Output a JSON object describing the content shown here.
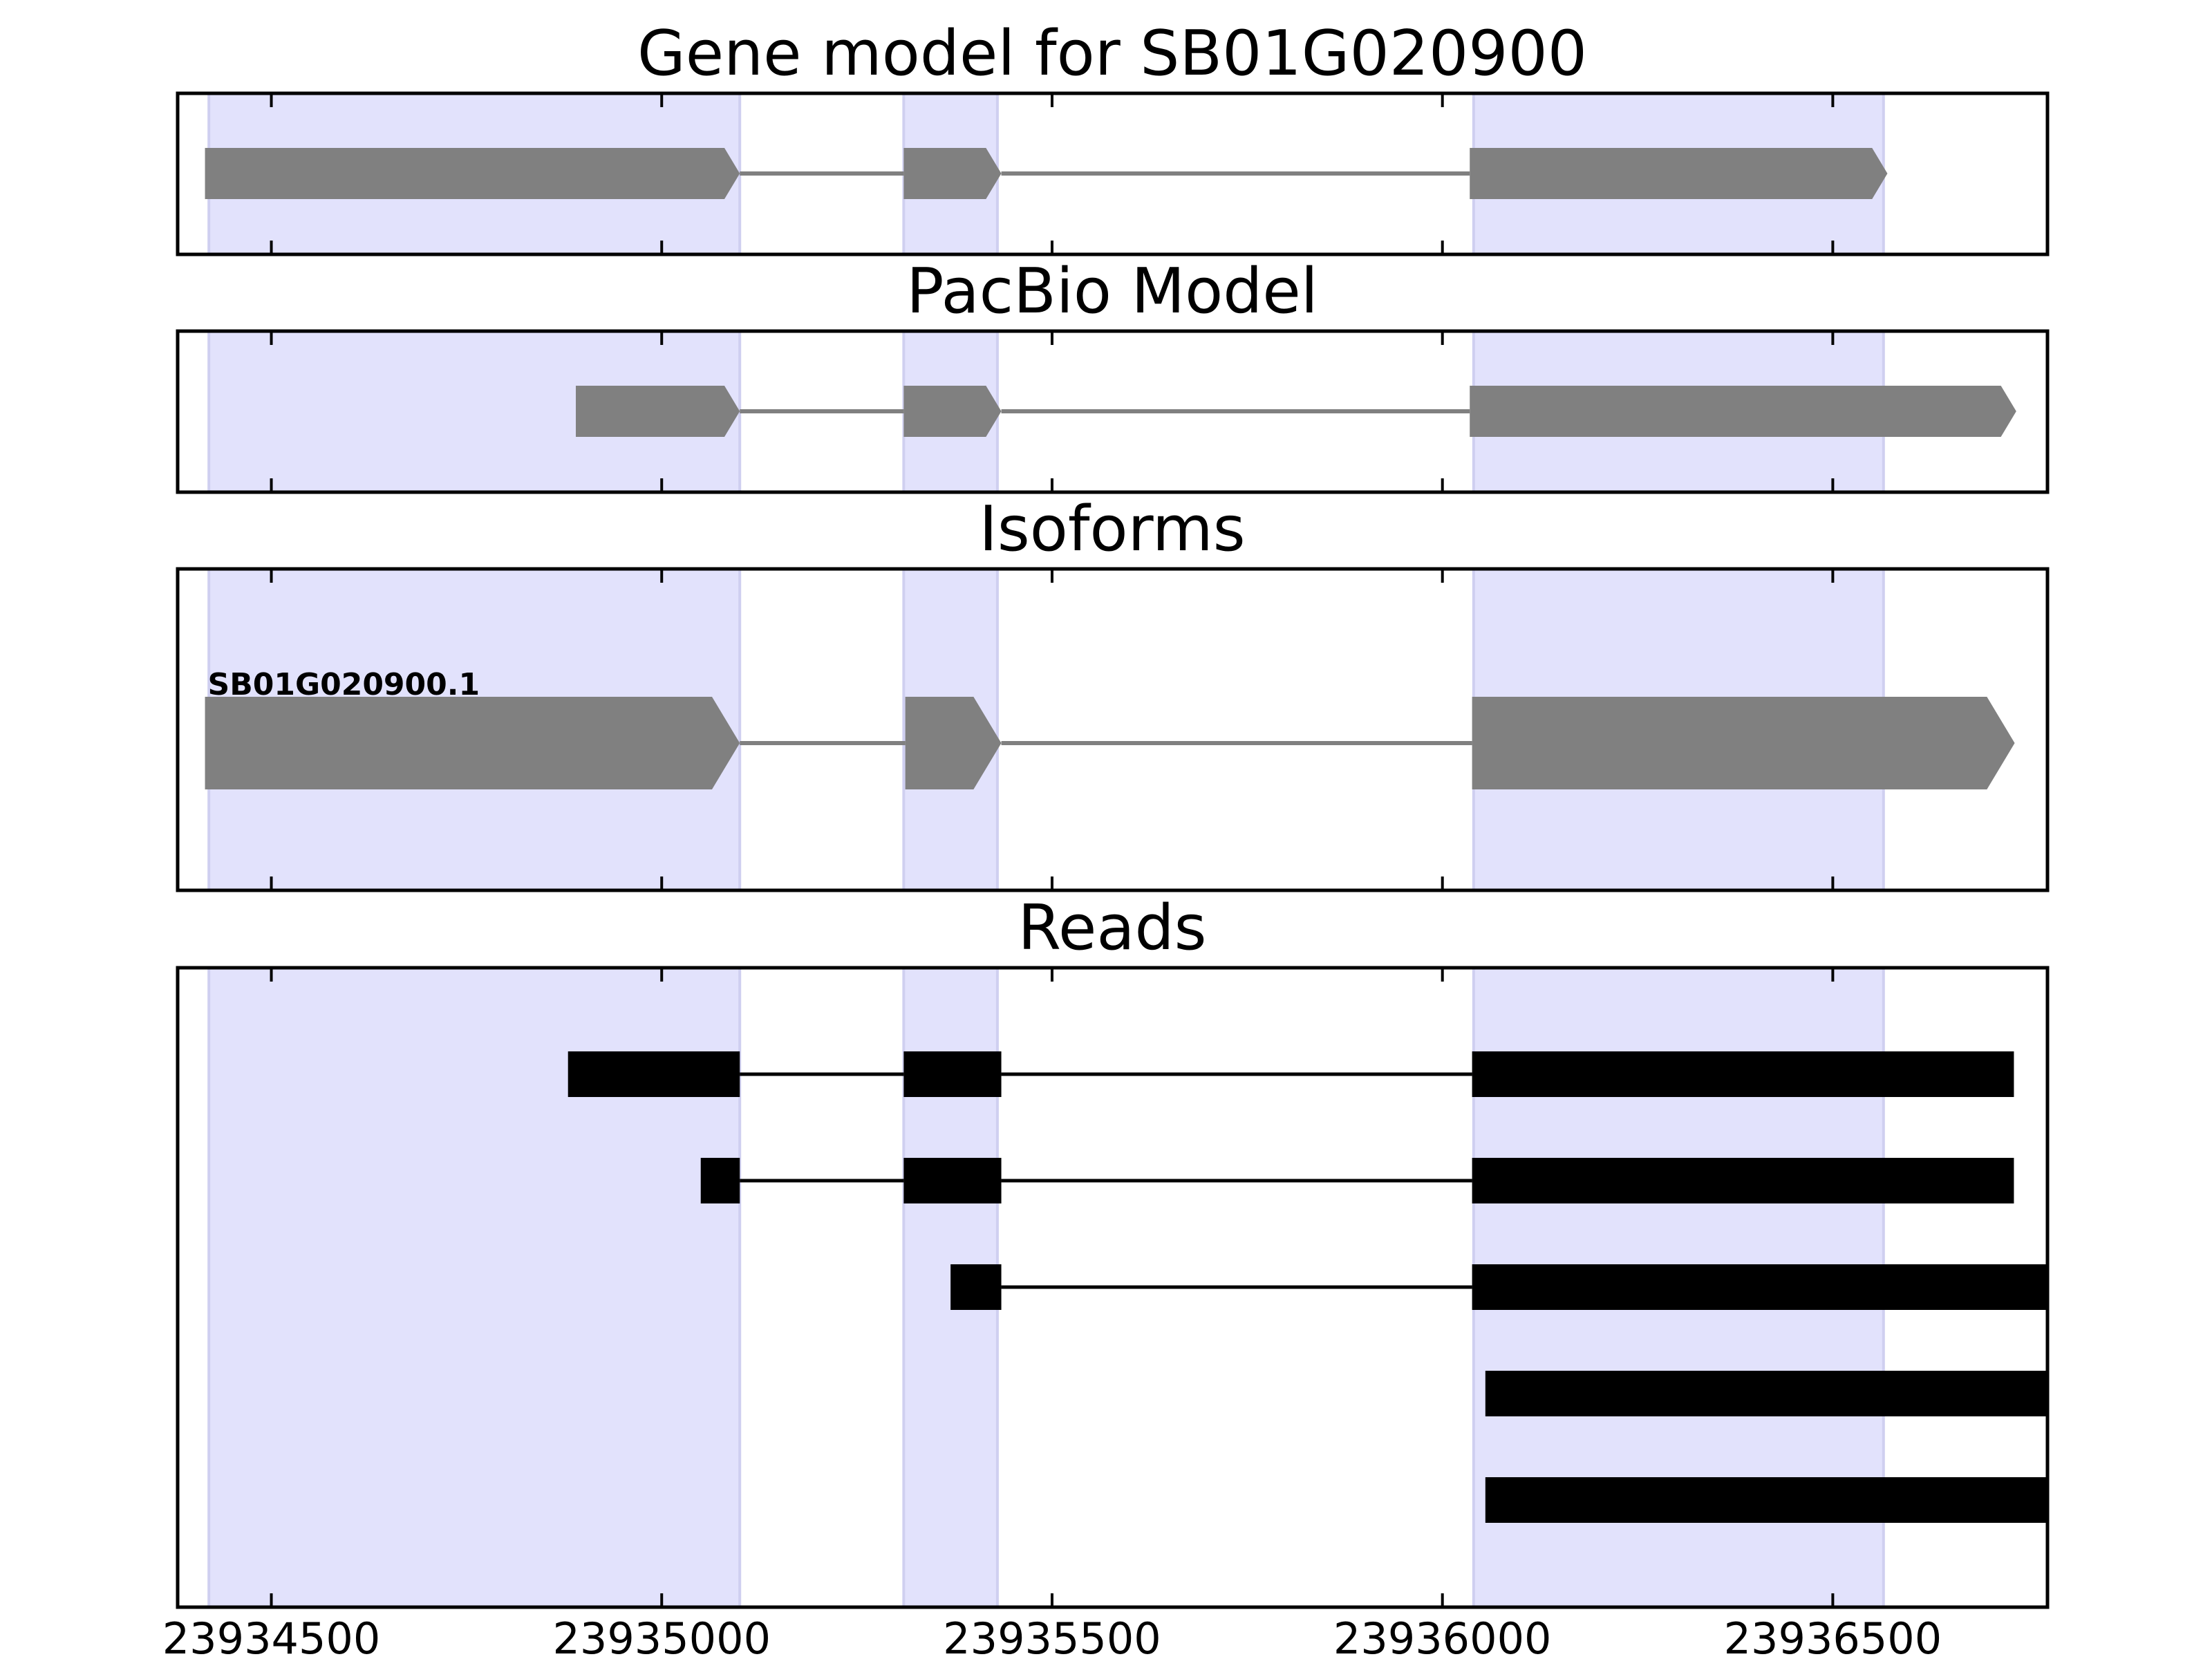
{
  "chart_data": {
    "type": "gene-track",
    "xlim": [
      23934380,
      23936775
    ],
    "xticks": [
      23934500,
      23935000,
      23935500,
      23936000,
      23936500
    ],
    "tick_labels": [
      "23934500",
      "23935000",
      "23935500",
      "23936000",
      "23936500"
    ],
    "highlight_color": "#e2e2fc",
    "highlight_regions": [
      [
        23934420,
        23935100
      ],
      [
        23935310,
        23935430
      ],
      [
        23936040,
        23936565
      ]
    ],
    "panels": [
      {
        "key": "gene_model",
        "title": "Gene model for SB01G020900",
        "style": "arrow",
        "color": "#808080",
        "tracks": [
          {
            "label": "",
            "exons": [
              [
                23934415,
                23935100
              ],
              [
                23935310,
                23935435
              ],
              [
                23936035,
                23936570
              ]
            ]
          }
        ]
      },
      {
        "key": "pacbio_model",
        "title": "PacBio Model",
        "style": "arrow",
        "color": "#808080",
        "tracks": [
          {
            "label": "",
            "exons": [
              [
                23934890,
                23935100
              ],
              [
                23935310,
                23935435
              ],
              [
                23936035,
                23936735
              ]
            ]
          }
        ]
      },
      {
        "key": "isoforms",
        "title": "Isoforms",
        "style": "arrow",
        "color": "#808080",
        "tracks": [
          {
            "label": "SB01G020900.1",
            "exons": [
              [
                23934415,
                23935100
              ],
              [
                23935312,
                23935435
              ],
              [
                23936038,
                23936733
              ]
            ]
          }
        ]
      },
      {
        "key": "reads",
        "title": "Reads",
        "style": "block",
        "color": "#000000",
        "tracks": [
          {
            "label": "",
            "exons": [
              [
                23934880,
                23935100
              ],
              [
                23935310,
                23935435
              ],
              [
                23936038,
                23936732
              ]
            ]
          },
          {
            "label": "",
            "exons": [
              [
                23935050,
                23935100
              ],
              [
                23935310,
                23935435
              ],
              [
                23936038,
                23936732
              ]
            ]
          },
          {
            "label": "",
            "exons": [
              [
                23935370,
                23935435
              ],
              [
                23936038,
                23936775
              ]
            ]
          },
          {
            "label": "",
            "exons": [
              [
                23936055,
                23936775
              ]
            ]
          },
          {
            "label": "",
            "exons": [
              [
                23936055,
                23936775
              ]
            ]
          }
        ]
      }
    ]
  }
}
